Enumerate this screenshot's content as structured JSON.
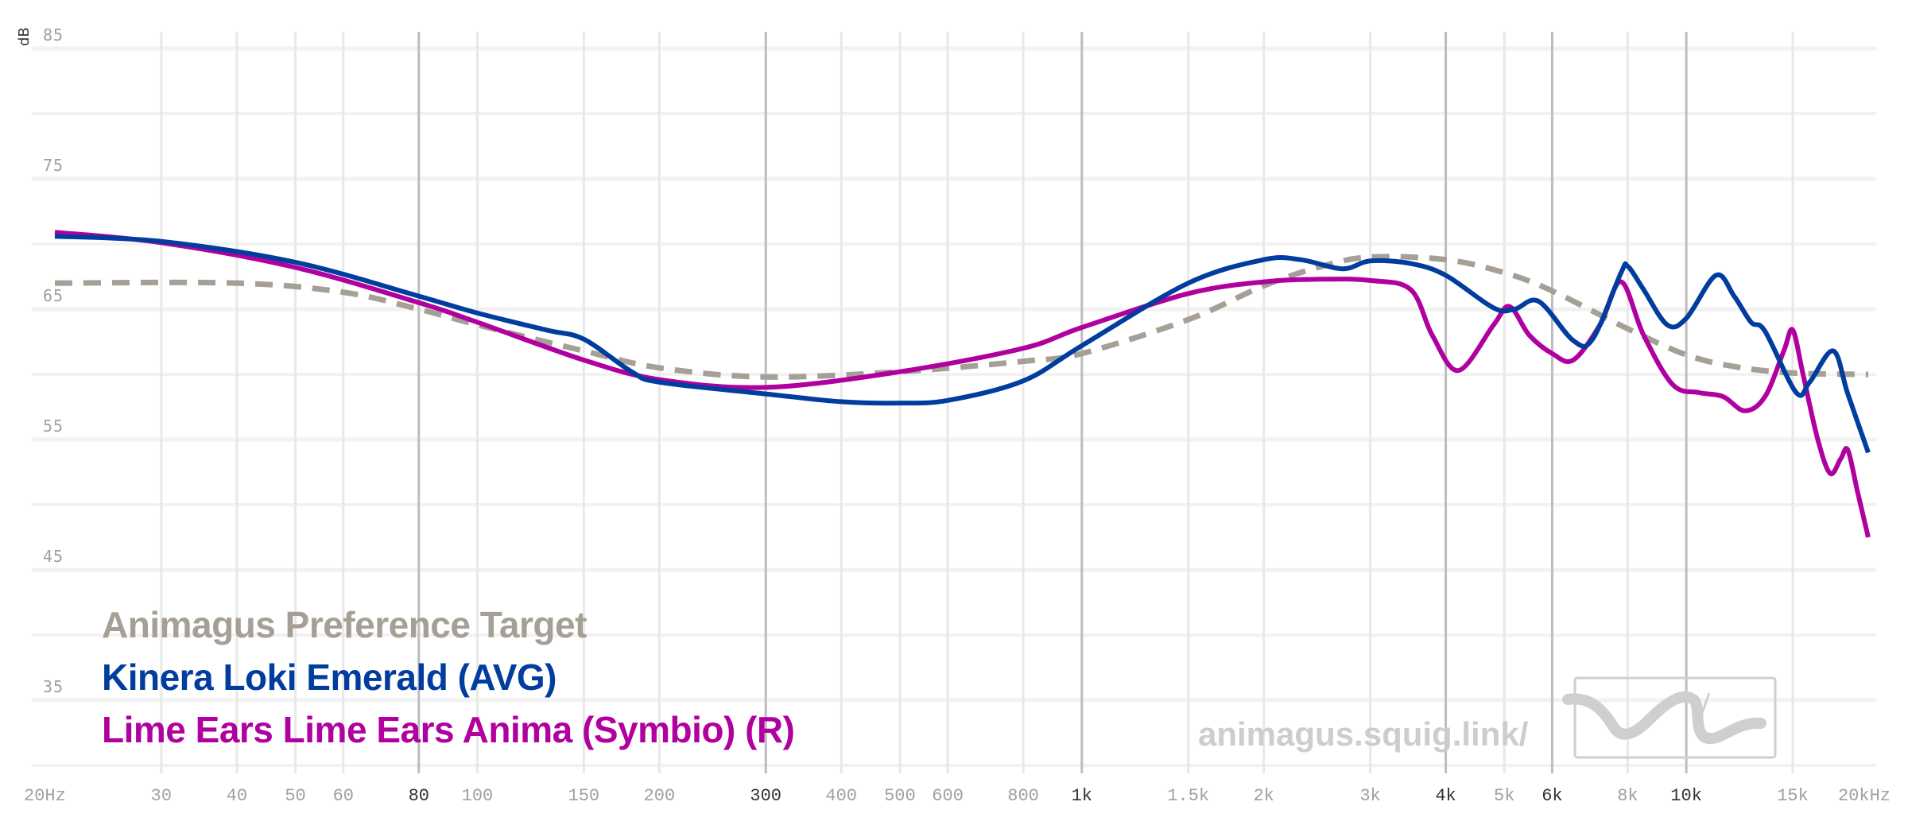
{
  "chart_data": {
    "type": "line",
    "title": "",
    "xlabel": "Hz",
    "ylabel": "dB",
    "x_scale": "log",
    "xlim": [
      20,
      20000
    ],
    "ylim": [
      30,
      85
    ],
    "grid": true,
    "legend_position": "bottom-left",
    "y_ticks": [
      85,
      75,
      65,
      55,
      45,
      35
    ],
    "x_ticks": [
      {
        "f": 20,
        "label": "20Hz",
        "major": false
      },
      {
        "f": 30,
        "label": "30",
        "major": false
      },
      {
        "f": 40,
        "label": "40",
        "major": false
      },
      {
        "f": 50,
        "label": "50",
        "major": false
      },
      {
        "f": 60,
        "label": "60",
        "major": false
      },
      {
        "f": 80,
        "label": "80",
        "major": true
      },
      {
        "f": 100,
        "label": "100",
        "major": false
      },
      {
        "f": 150,
        "label": "150",
        "major": false
      },
      {
        "f": 200,
        "label": "200",
        "major": false
      },
      {
        "f": 300,
        "label": "300",
        "major": true
      },
      {
        "f": 400,
        "label": "400",
        "major": false
      },
      {
        "f": 500,
        "label": "500",
        "major": false
      },
      {
        "f": 600,
        "label": "600",
        "major": false
      },
      {
        "f": 800,
        "label": "800",
        "major": false
      },
      {
        "f": 1000,
        "label": "1k",
        "major": true
      },
      {
        "f": 1500,
        "label": "1.5k",
        "major": false
      },
      {
        "f": 2000,
        "label": "2k",
        "major": false
      },
      {
        "f": 3000,
        "label": "3k",
        "major": false
      },
      {
        "f": 4000,
        "label": "4k",
        "major": true
      },
      {
        "f": 5000,
        "label": "5k",
        "major": false
      },
      {
        "f": 6000,
        "label": "6k",
        "major": true
      },
      {
        "f": 8000,
        "label": "8k",
        "major": false
      },
      {
        "f": 10000,
        "label": "10k",
        "major": true
      },
      {
        "f": 15000,
        "label": "15k",
        "major": false
      },
      {
        "f": 20000,
        "label": "20kHz",
        "major": false
      }
    ],
    "series": [
      {
        "name": "Animagus Preference Target",
        "color": "#a59f96",
        "dashed": true,
        "points": [
          [
            20,
            67.0
          ],
          [
            40,
            67.0
          ],
          [
            60,
            66.3
          ],
          [
            80,
            65.0
          ],
          [
            100,
            63.8
          ],
          [
            150,
            61.8
          ],
          [
            200,
            60.5
          ],
          [
            300,
            59.8
          ],
          [
            500,
            60.2
          ],
          [
            800,
            61.0
          ],
          [
            1000,
            61.6
          ],
          [
            1500,
            64.2
          ],
          [
            2000,
            66.8
          ],
          [
            2500,
            68.3
          ],
          [
            3000,
            69.0
          ],
          [
            4000,
            68.8
          ],
          [
            5000,
            67.8
          ],
          [
            6000,
            66.4
          ],
          [
            8000,
            63.5
          ],
          [
            10000,
            61.5
          ],
          [
            12000,
            60.6
          ],
          [
            15000,
            60.1
          ],
          [
            20000,
            60.0
          ]
        ]
      },
      {
        "name": "Kinera Loki Emerald (AVG)",
        "color": "#003d9e",
        "dashed": false,
        "points": [
          [
            20,
            70.6
          ],
          [
            30,
            70.2
          ],
          [
            50,
            68.6
          ],
          [
            80,
            66.0
          ],
          [
            100,
            64.7
          ],
          [
            130,
            63.4
          ],
          [
            150,
            62.7
          ],
          [
            180,
            60.2
          ],
          [
            200,
            59.4
          ],
          [
            300,
            58.5
          ],
          [
            400,
            57.9
          ],
          [
            500,
            57.8
          ],
          [
            600,
            58.0
          ],
          [
            800,
            59.5
          ],
          [
            1000,
            62.2
          ],
          [
            1500,
            67.0
          ],
          [
            2000,
            68.8
          ],
          [
            2300,
            68.8
          ],
          [
            2700,
            68.1
          ],
          [
            3000,
            68.7
          ],
          [
            3500,
            68.5
          ],
          [
            4000,
            67.6
          ],
          [
            4800,
            65.1
          ],
          [
            5200,
            65.0
          ],
          [
            5700,
            65.6
          ],
          [
            6500,
            62.6
          ],
          [
            7000,
            62.7
          ],
          [
            7800,
            67.8
          ],
          [
            8000,
            68.3
          ],
          [
            8500,
            66.5
          ],
          [
            9300,
            63.8
          ],
          [
            10000,
            64.3
          ],
          [
            11200,
            67.6
          ],
          [
            12000,
            66.0
          ],
          [
            12800,
            64.0
          ],
          [
            13500,
            63.3
          ],
          [
            15200,
            58.6
          ],
          [
            16000,
            59.4
          ],
          [
            17500,
            61.8
          ],
          [
            18500,
            58.5
          ],
          [
            20000,
            54.0
          ]
        ]
      },
      {
        "name": "Lime Ears Lime Ears Anima (Symbio) (R)",
        "color": "#b0009f",
        "dashed": false,
        "points": [
          [
            20,
            70.9
          ],
          [
            30,
            70.1
          ],
          [
            50,
            68.2
          ],
          [
            80,
            65.5
          ],
          [
            100,
            64.0
          ],
          [
            150,
            61.1
          ],
          [
            200,
            59.6
          ],
          [
            300,
            59.0
          ],
          [
            500,
            60.2
          ],
          [
            800,
            62.0
          ],
          [
            1000,
            63.6
          ],
          [
            1500,
            66.2
          ],
          [
            2000,
            67.1
          ],
          [
            2500,
            67.3
          ],
          [
            3000,
            67.2
          ],
          [
            3500,
            66.5
          ],
          [
            3800,
            63.0
          ],
          [
            4200,
            60.3
          ],
          [
            4800,
            63.8
          ],
          [
            5100,
            65.2
          ],
          [
            5500,
            63.0
          ],
          [
            6000,
            61.6
          ],
          [
            6500,
            61.1
          ],
          [
            7200,
            63.8
          ],
          [
            7800,
            67.1
          ],
          [
            8500,
            63.0
          ],
          [
            9500,
            59.2
          ],
          [
            10500,
            58.6
          ],
          [
            11500,
            58.3
          ],
          [
            12500,
            57.2
          ],
          [
            13500,
            58.3
          ],
          [
            14500,
            61.8
          ],
          [
            15000,
            63.4
          ],
          [
            15600,
            60.0
          ],
          [
            16500,
            55.0
          ],
          [
            17300,
            52.4
          ],
          [
            18000,
            53.5
          ],
          [
            18500,
            54.2
          ],
          [
            19200,
            51.0
          ],
          [
            20000,
            47.5
          ]
        ]
      }
    ]
  },
  "axis": {
    "unit_label": "dB"
  },
  "legend": [
    {
      "label": "Animagus Preference Target",
      "color": "#a59f96"
    },
    {
      "label": "Kinera Loki Emerald (AVG)",
      "color": "#003d9e"
    },
    {
      "label": "Lime Ears Lime Ears Anima (Symbio) (R)",
      "color": "#b0009f"
    }
  ],
  "watermark": {
    "text": "animagus.squig.link/",
    "logo": "squiggle-logo-icon"
  }
}
